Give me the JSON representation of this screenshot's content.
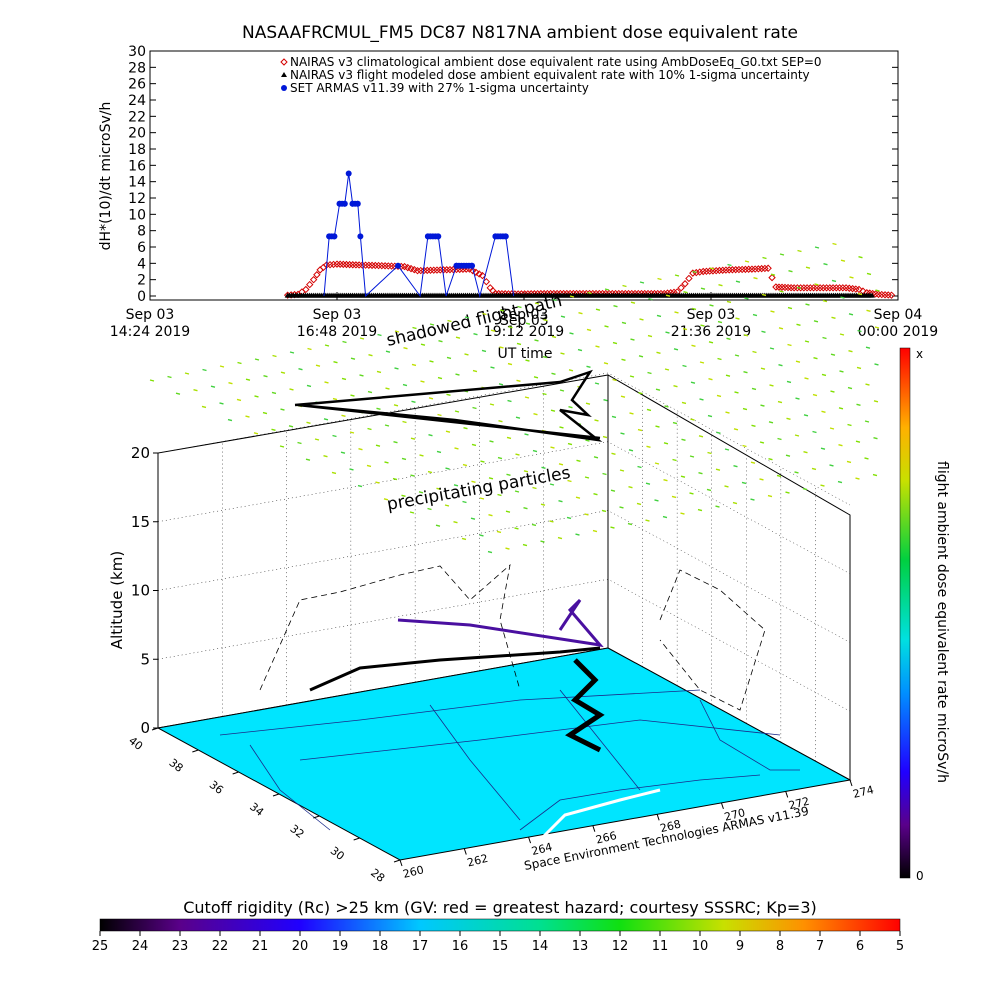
{
  "chart_data": [
    {
      "type": "scatter",
      "title": "NASAAFRCMUL_FM5 DC87 N817NA ambient dose equivalent rate",
      "xlabel": "UT time",
      "ylabel": "dH*(10)/dt microSv/h",
      "ylim": [
        0,
        30
      ],
      "yticks": [
        0,
        2,
        4,
        6,
        8,
        10,
        12,
        14,
        16,
        18,
        20,
        22,
        24,
        26,
        28,
        30
      ],
      "xlim": [
        "2019-09-03 14:24",
        "2019-09-04 00:00"
      ],
      "xticks": [
        {
          "t": "2019-09-03 14:24",
          "line1": "Sep 03",
          "line2": "14:24 2019"
        },
        {
          "t": "2019-09-03 16:48",
          "line1": "Sep 03",
          "line2": "16:48 2019"
        },
        {
          "t": "2019-09-03 19:12",
          "line1": "Sep 03",
          "line2": "19:12 2019"
        },
        {
          "t": "2019-09-03 21:36",
          "line1": "Sep 03",
          "line2": "21:36 2019"
        },
        {
          "t": "2019-09-04 00:00",
          "line1": "Sep 04",
          "line2": "00:00 2019"
        }
      ],
      "legend_position": "top-right",
      "series": [
        {
          "name": "NAIRAS v3 climatological ambient dose equivalent rate using AmbDoseEq_G0.txt SEP=0",
          "color": "#d40000",
          "marker": "diamond",
          "points": [
            [
              "2019-09-03 16:10",
              0.1
            ],
            [
              "2019-09-03 16:18",
              0.2
            ],
            [
              "2019-09-03 16:24",
              0.8
            ],
            [
              "2019-09-03 16:30",
              2.0
            ],
            [
              "2019-09-03 16:35",
              3.2
            ],
            [
              "2019-09-03 16:40",
              3.8
            ],
            [
              "2019-09-03 16:48",
              3.9
            ],
            [
              "2019-09-03 17:05",
              3.8
            ],
            [
              "2019-09-03 17:25",
              3.7
            ],
            [
              "2019-09-03 17:40",
              3.6
            ],
            [
              "2019-09-03 17:50",
              3.1
            ],
            [
              "2019-09-03 18:10",
              3.2
            ],
            [
              "2019-09-03 18:30",
              3.3
            ],
            [
              "2019-09-03 18:40",
              2.5
            ],
            [
              "2019-09-03 18:46",
              1.0
            ],
            [
              "2019-09-03 18:50",
              0.3
            ],
            [
              "2019-09-03 19:05",
              0.25
            ],
            [
              "2019-09-03 19:30",
              0.3
            ],
            [
              "2019-09-03 20:00",
              0.3
            ],
            [
              "2019-09-03 20:30",
              0.3
            ],
            [
              "2019-09-03 21:00",
              0.3
            ],
            [
              "2019-09-03 21:10",
              0.5
            ],
            [
              "2019-09-03 21:16",
              1.5
            ],
            [
              "2019-09-03 21:22",
              2.8
            ],
            [
              "2019-09-03 21:30",
              3.0
            ],
            [
              "2019-09-03 21:50",
              3.2
            ],
            [
              "2019-09-03 22:10",
              3.3
            ],
            [
              "2019-09-03 22:20",
              3.4
            ],
            [
              "2019-09-03 22:26",
              1.1
            ],
            [
              "2019-09-03 22:40",
              1.0
            ],
            [
              "2019-09-03 23:00",
              1.0
            ],
            [
              "2019-09-03 23:20",
              1.0
            ],
            [
              "2019-09-03 23:30",
              0.8
            ],
            [
              "2019-09-03 23:36",
              0.4
            ],
            [
              "2019-09-03 23:45",
              0.2
            ],
            [
              "2019-09-03 23:55",
              0.1
            ]
          ]
        },
        {
          "name": "NAIRAS v3 flight modeled dose ambient equivalent rate with 10% 1-sigma uncertainty",
          "color": "#000000",
          "marker": "triangle",
          "points": [
            [
              "2019-09-03 16:10",
              0.05
            ],
            [
              "2019-09-03 16:48",
              0.05
            ],
            [
              "2019-09-03 17:40",
              0.05
            ],
            [
              "2019-09-03 18:30",
              0.05
            ],
            [
              "2019-09-03 19:12",
              0.05
            ],
            [
              "2019-09-03 20:00",
              0.05
            ],
            [
              "2019-09-03 21:00",
              0.05
            ],
            [
              "2019-09-03 21:36",
              0.05
            ],
            [
              "2019-09-03 22:20",
              0.05
            ],
            [
              "2019-09-03 23:00",
              0.05
            ],
            [
              "2019-09-03 23:40",
              0.05
            ]
          ]
        },
        {
          "name": "SET ARMAS v11.39 with 27% 1-sigma uncertainty",
          "color": "#0018d8",
          "marker": "circle",
          "points": [
            [
              "2019-09-03 16:38",
              0.0
            ],
            [
              "2019-09-03 16:42",
              7.3
            ],
            [
              "2019-09-03 16:46",
              7.3
            ],
            [
              "2019-09-03 16:50",
              11.3
            ],
            [
              "2019-09-03 16:54",
              11.3
            ],
            [
              "2019-09-03 16:57",
              15.0
            ],
            [
              "2019-09-03 17:00",
              11.3
            ],
            [
              "2019-09-03 17:04",
              11.3
            ],
            [
              "2019-09-03 17:06",
              7.3
            ],
            [
              "2019-09-03 17:10",
              0.0
            ],
            [
              "2019-09-03 17:35",
              3.7
            ],
            [
              "2019-09-03 17:52",
              0.0
            ],
            [
              "2019-09-03 17:58",
              7.3
            ],
            [
              "2019-09-03 18:06",
              7.3
            ],
            [
              "2019-09-03 18:12",
              0.0
            ],
            [
              "2019-09-03 18:20",
              3.7
            ],
            [
              "2019-09-03 18:32",
              3.7
            ],
            [
              "2019-09-03 18:38",
              0.0
            ],
            [
              "2019-09-03 18:50",
              7.3
            ],
            [
              "2019-09-03 18:58",
              7.3
            ],
            [
              "2019-09-03 19:04",
              0.0
            ]
          ]
        }
      ],
      "overlay_labels": [
        "shadowed flight path",
        "Sep 03"
      ]
    },
    {
      "type": "surface3d",
      "zlabel": "Altitude (km)",
      "zticks": [
        0,
        5,
        10,
        15,
        20
      ],
      "latitude_ticks": [
        40,
        38,
        36,
        34,
        32,
        30,
        28
      ],
      "longitude_ticks": [
        260,
        262,
        264,
        266,
        268,
        270,
        272,
        274
      ],
      "annotations": [
        "precipitating particles",
        "shadowed flight path"
      ],
      "credit": "Space Environment Technologies ARMAS v11.39",
      "surface_color": "#00e5ff"
    },
    {
      "type": "colorbar",
      "orientation": "vertical",
      "label": "flight ambient dose equivalent rate microSv/h",
      "top_label": "x",
      "bottom_label": "0"
    },
    {
      "type": "colorbar",
      "orientation": "horizontal",
      "title": "Cutoff rigidity (Rc) >25 km (GV: red = greatest hazard; courtesy SSSRC; Kp=3)",
      "ticks": [
        25,
        24,
        23,
        22,
        21,
        20,
        19,
        18,
        17,
        16,
        15,
        14,
        13,
        12,
        11,
        10,
        9,
        8,
        7,
        6,
        5
      ]
    }
  ]
}
